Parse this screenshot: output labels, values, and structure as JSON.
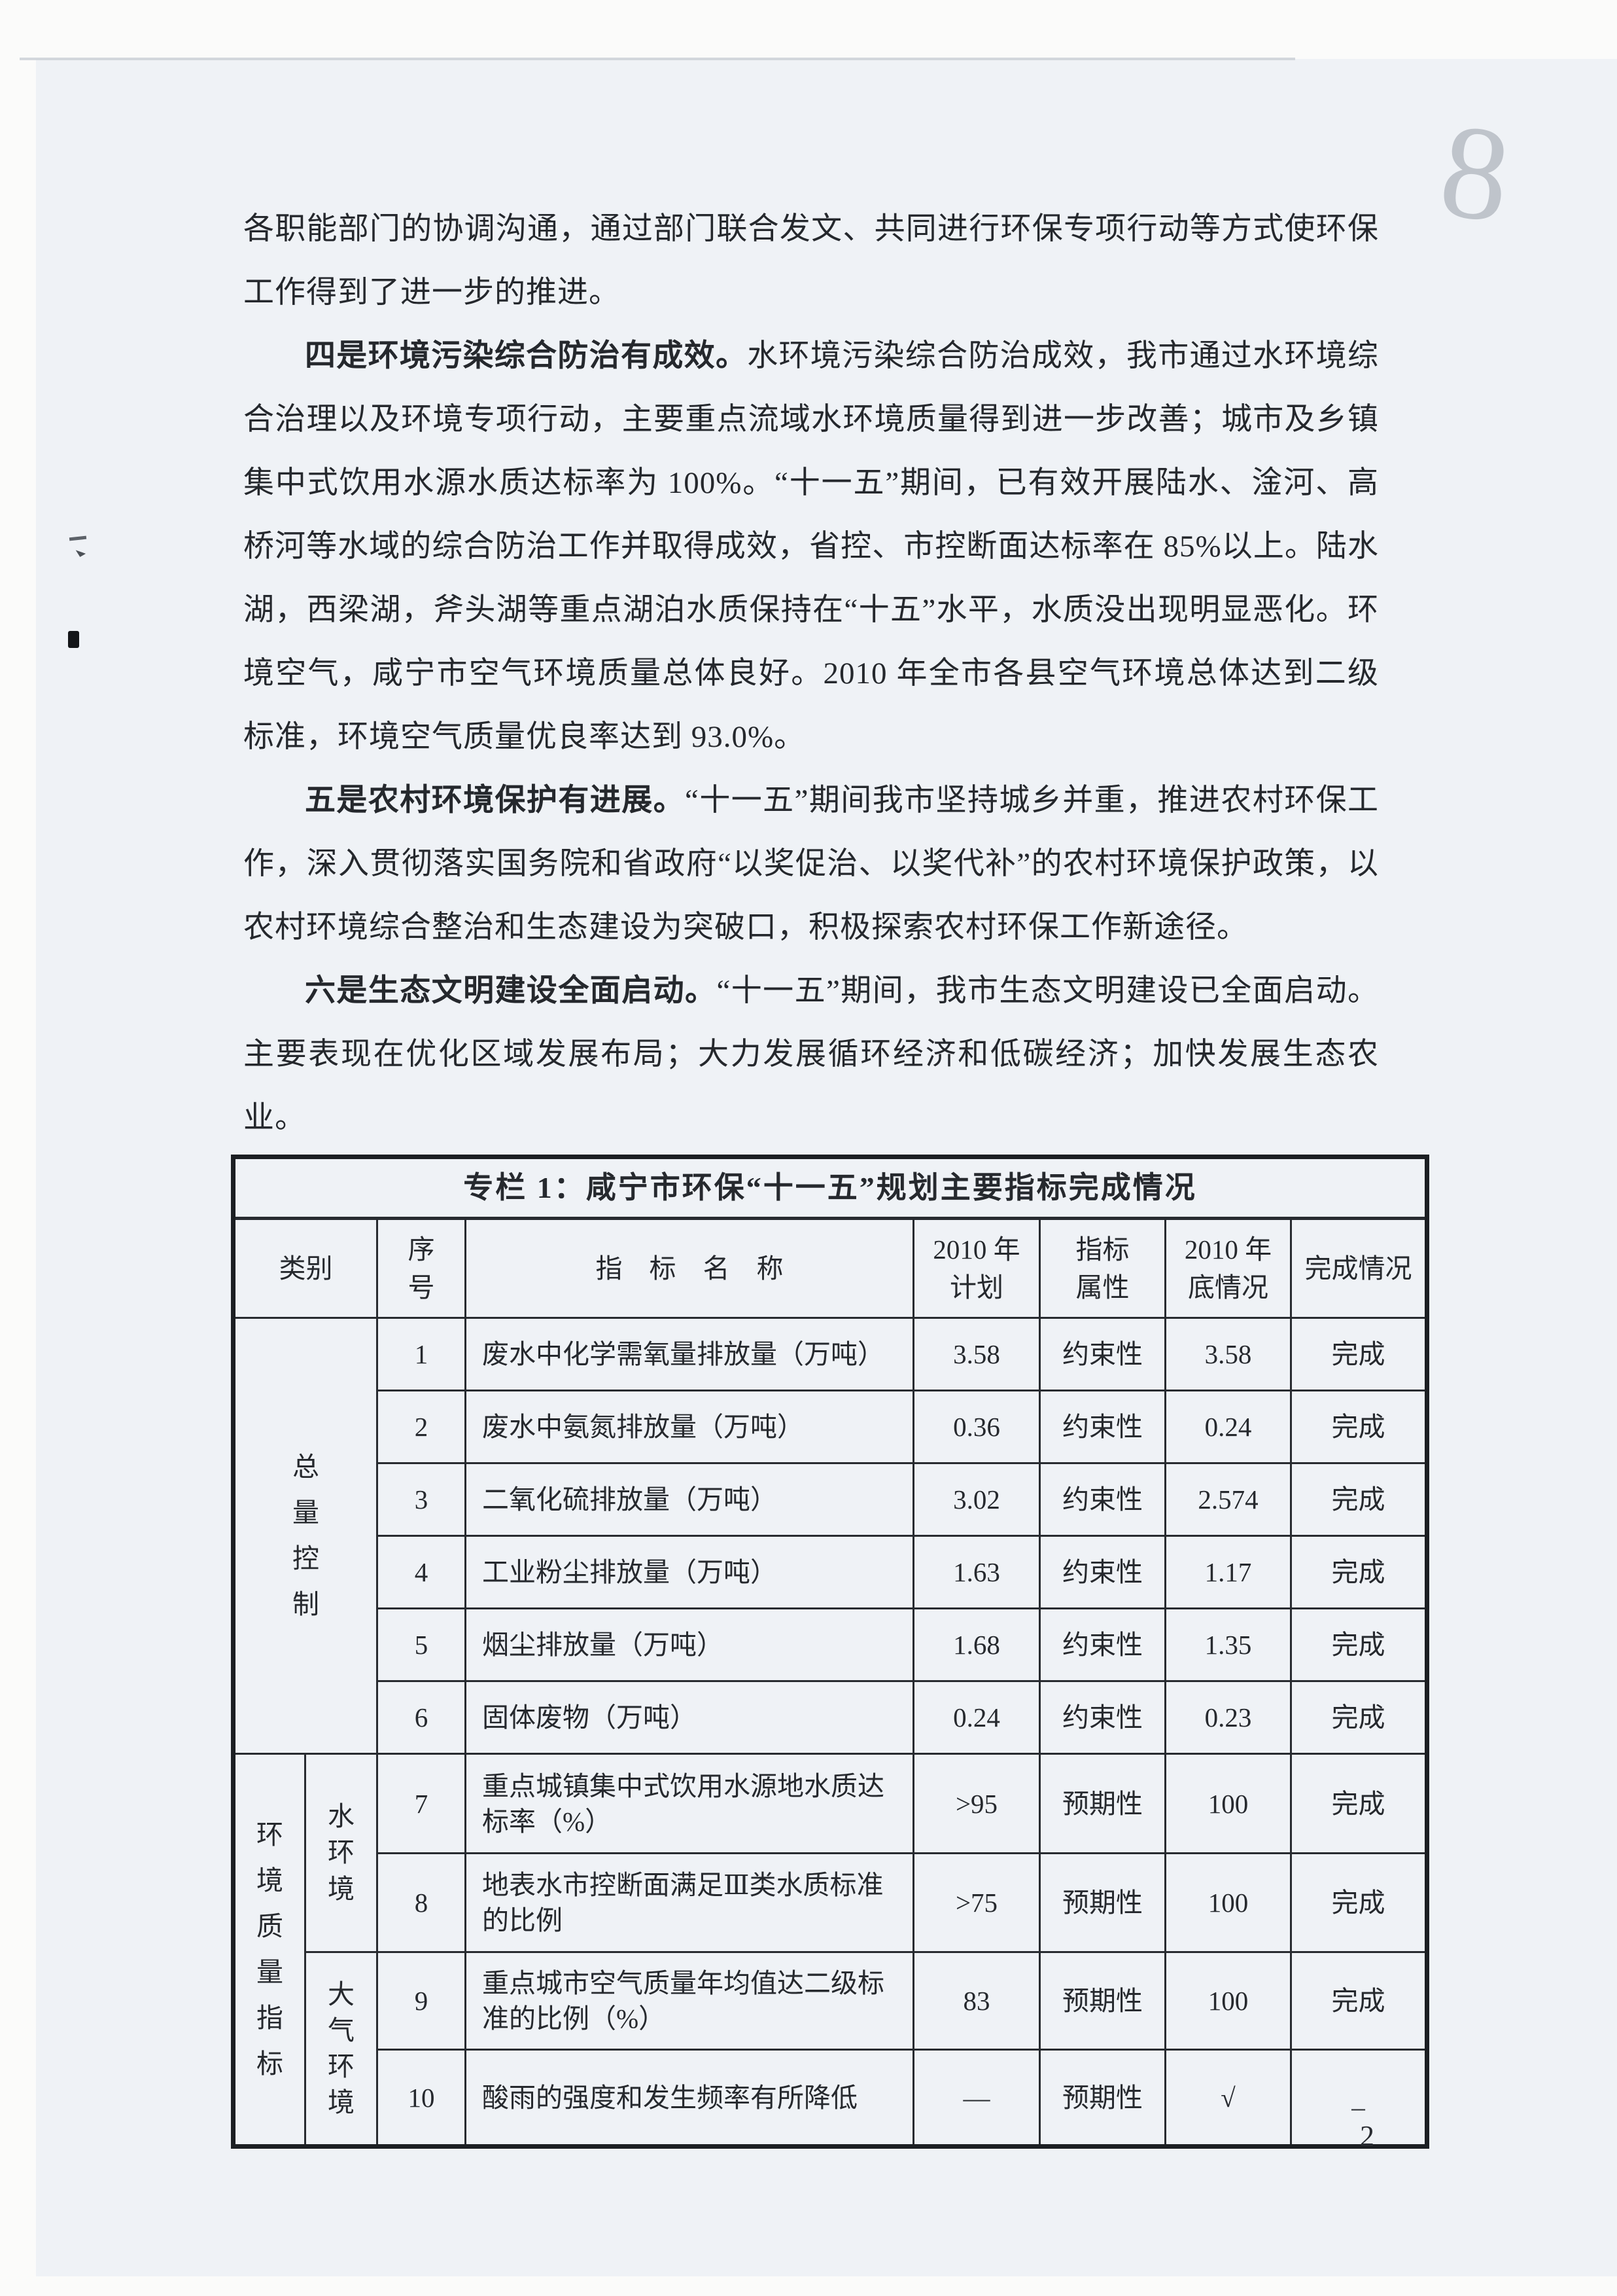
{
  "page": {
    "number": "2",
    "handwritten_mark": "8"
  },
  "paragraphs": [
    {
      "lead": "",
      "text": "各职能部门的协调沟通，通过部门联合发文、共同进行环保专项行动等方式使环保工作得到了进一步的推进。"
    },
    {
      "lead": "四是环境污染综合防治有成效。",
      "text": "水环境污染综合防治成效，我市通过水环境综合治理以及环境专项行动，主要重点流域水环境质量得到进一步改善；城市及乡镇集中式饮用水源水质达标率为 100%。“十一五”期间，已有效开展陆水、淦河、高桥河等水域的综合防治工作并取得成效，省控、市控断面达标率在 85%以上。陆水湖，西梁湖，斧头湖等重点湖泊水质保持在“十五”水平，水质没出现明显恶化。环境空气，咸宁市空气环境质量总体良好。2010 年全市各县空气环境总体达到二级标准，环境空气质量优良率达到 93.0%。"
    },
    {
      "lead": "五是农村环境保护有进展。",
      "text": "“十一五”期间我市坚持城乡并重，推进农村环保工作，深入贯彻落实国务院和省政府“以奖促治、以奖代补”的农村环境保护政策，以农村环境综合整治和生态建设为突破口，积极探索农村环保工作新途径。"
    },
    {
      "lead": "六是生态文明建设全面启动。",
      "text": "“十一五”期间，我市生态文明建设已全面启动。主要表现在优化区域发展布局；大力发展循环经济和低碳经济；加快发展生态农业。"
    }
  ],
  "table": {
    "title": "专栏 1：咸宁市环保“十一五”规划主要指标完成情况",
    "headers": {
      "category": "类别",
      "no": "序\n号",
      "name": "指　标　名　称",
      "plan": "2010 年\n计划",
      "attribute": "指标\n属性",
      "actual": "2010 年\n底情况",
      "status": "完成情况"
    },
    "categories": {
      "total_control": "总量控制",
      "env_quality": "环境质量指标",
      "water_env": "水环境",
      "air_env": "大气环境"
    },
    "rows": [
      {
        "no": "1",
        "name": "废水中化学需氧量排放量（万吨）",
        "plan": "3.58",
        "attr": "约束性",
        "actual": "3.58",
        "status": "完成"
      },
      {
        "no": "2",
        "name": "废水中氨氮排放量（万吨）",
        "plan": "0.36",
        "attr": "约束性",
        "actual": "0.24",
        "status": "完成"
      },
      {
        "no": "3",
        "name": "二氧化硫排放量（万吨）",
        "plan": "3.02",
        "attr": "约束性",
        "actual": "2.574",
        "status": "完成"
      },
      {
        "no": "4",
        "name": "工业粉尘排放量（万吨）",
        "plan": "1.63",
        "attr": "约束性",
        "actual": "1.17",
        "status": "完成"
      },
      {
        "no": "5",
        "name": "烟尘排放量（万吨）",
        "plan": "1.68",
        "attr": "约束性",
        "actual": "1.35",
        "status": "完成"
      },
      {
        "no": "6",
        "name": "固体废物（万吨）",
        "plan": "0.24",
        "attr": "约束性",
        "actual": "0.23",
        "status": "完成"
      },
      {
        "no": "7",
        "name": "重点城镇集中式饮用水源地水质达标率（%）",
        "plan": ">95",
        "attr": "预期性",
        "actual": "100",
        "status": "完成"
      },
      {
        "no": "8",
        "name": "地表水市控断面满足Ⅲ类水质标准的比例",
        "plan": ">75",
        "attr": "预期性",
        "actual": "100",
        "status": "完成"
      },
      {
        "no": "9",
        "name": "重点城市空气质量年均值达二级标准的比例（%）",
        "plan": "83",
        "attr": "预期性",
        "actual": "100",
        "status": "完成"
      },
      {
        "no": "10",
        "name": "酸雨的强度和发生频率有所降低",
        "plan": "—",
        "attr": "预期性",
        "actual": "√",
        "status": "_"
      }
    ]
  }
}
